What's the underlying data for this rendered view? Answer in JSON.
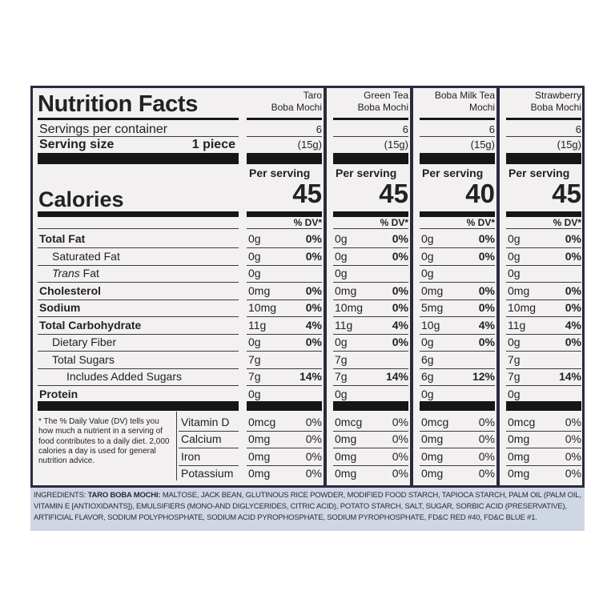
{
  "title": "Nutrition Facts",
  "servings_label": "Servings per container",
  "serving_size_label": "Serving size",
  "serving_size_value": "1 piece",
  "calories_label": "Calories",
  "per_serving_label": "Per serving",
  "dv_label": "% DV*",
  "products": [
    {
      "name_line1": "Taro",
      "name_line2": "Boba Mochi",
      "servings": "6",
      "serving_grams": "(15g)",
      "calories": "45",
      "nutrients": [
        [
          "0g",
          "0%"
        ],
        [
          "0g",
          "0%"
        ],
        [
          "0g",
          ""
        ],
        [
          "0mg",
          "0%"
        ],
        [
          "10mg",
          "0%"
        ],
        [
          "11g",
          "4%"
        ],
        [
          "0g",
          "0%"
        ],
        [
          "7g",
          ""
        ],
        [
          "7g",
          "14%"
        ],
        [
          "0g",
          ""
        ]
      ],
      "vitamins": [
        [
          "0mcg",
          "0%"
        ],
        [
          "0mg",
          "0%"
        ],
        [
          "0mg",
          "0%"
        ],
        [
          "0mg",
          "0%"
        ]
      ]
    },
    {
      "name_line1": "Green Tea",
      "name_line2": "Boba Mochi",
      "servings": "6",
      "serving_grams": "(15g)",
      "calories": "45",
      "nutrients": [
        [
          "0g",
          "0%"
        ],
        [
          "0g",
          "0%"
        ],
        [
          "0g",
          ""
        ],
        [
          "0mg",
          "0%"
        ],
        [
          "10mg",
          "0%"
        ],
        [
          "11g",
          "4%"
        ],
        [
          "0g",
          "0%"
        ],
        [
          "7g",
          ""
        ],
        [
          "7g",
          "14%"
        ],
        [
          "0g",
          ""
        ]
      ],
      "vitamins": [
        [
          "0mcg",
          "0%"
        ],
        [
          "0mg",
          "0%"
        ],
        [
          "0mg",
          "0%"
        ],
        [
          "0mg",
          "0%"
        ]
      ]
    },
    {
      "name_line1": "Boba Milk Tea",
      "name_line2": "Mochi",
      "servings": "6",
      "serving_grams": "(15g)",
      "calories": "40",
      "nutrients": [
        [
          "0g",
          "0%"
        ],
        [
          "0g",
          "0%"
        ],
        [
          "0g",
          ""
        ],
        [
          "0mg",
          "0%"
        ],
        [
          "5mg",
          "0%"
        ],
        [
          "10g",
          "4%"
        ],
        [
          "0g",
          "0%"
        ],
        [
          "6g",
          ""
        ],
        [
          "6g",
          "12%"
        ],
        [
          "0g",
          ""
        ]
      ],
      "vitamins": [
        [
          "0mcg",
          "0%"
        ],
        [
          "0mg",
          "0%"
        ],
        [
          "0mg",
          "0%"
        ],
        [
          "0mg",
          "0%"
        ]
      ]
    },
    {
      "name_line1": "Strawberry",
      "name_line2": "Boba Mochi",
      "servings": "6",
      "serving_grams": "(15g)",
      "calories": "45",
      "nutrients": [
        [
          "0g",
          "0%"
        ],
        [
          "0g",
          "0%"
        ],
        [
          "0g",
          ""
        ],
        [
          "0mg",
          "0%"
        ],
        [
          "10mg",
          "0%"
        ],
        [
          "11g",
          "4%"
        ],
        [
          "0g",
          "0%"
        ],
        [
          "7g",
          ""
        ],
        [
          "7g",
          "14%"
        ],
        [
          "0g",
          ""
        ]
      ],
      "vitamins": [
        [
          "0mcg",
          "0%"
        ],
        [
          "0mg",
          "0%"
        ],
        [
          "0mg",
          "0%"
        ],
        [
          "0mg",
          "0%"
        ]
      ]
    }
  ],
  "nutrient_labels": [
    {
      "label": "Total Fat",
      "bold": true,
      "indent": 0
    },
    {
      "label": "Saturated Fat",
      "bold": false,
      "indent": 1
    },
    {
      "label_italic": "Trans",
      "label": " Fat",
      "bold": false,
      "indent": 1
    },
    {
      "label": "Cholesterol",
      "bold": true,
      "indent": 0
    },
    {
      "label": "Sodium",
      "bold": true,
      "indent": 0
    },
    {
      "label": "Total Carbohydrate",
      "bold": true,
      "indent": 0
    },
    {
      "label": "Dietary Fiber",
      "bold": false,
      "indent": 1
    },
    {
      "label": "Total Sugars",
      "bold": false,
      "indent": 1
    },
    {
      "label": "Includes Added Sugars",
      "bold": false,
      "indent": 2
    },
    {
      "label": "Protein",
      "bold": true,
      "indent": 0
    }
  ],
  "vitamin_labels": [
    "Vitamin D",
    "Calcium",
    "Iron",
    "Potassium"
  ],
  "footnote": "* The % Daily Value (DV) tells you how much a nutrient in a serving of food contributes to a daily diet. 2,000 calories a day is used for general nutrition advice.",
  "ingredients_label": "INGREDIENTS:",
  "ingredients_product": "TARO BOBA MOCHI:",
  "ingredients_text": "MALTOSE, JACK BEAN, GLUTINOUS RICE POWDER, MODIFIED FOOD STARCH, TAPIOCA STARCH, PALM OIL (PALM OIL, VITAMIN E [ANTIOXIDANTS]), EMULSIFIERS (MONO-AND DIGLYCERIDES, CITRIC ACID), POTATO STARCH, SALT, SUGAR, SORBIC ACID (PRESERVATIVE), ARTIFICIAL FLAVOR, SODIUM POLYPHOSPHATE, SODIUM ACID PYROPHOSPHATE, SODIUM PYROPHOSPHATE, FD&C RED #40, FD&C BLUE #1."
}
